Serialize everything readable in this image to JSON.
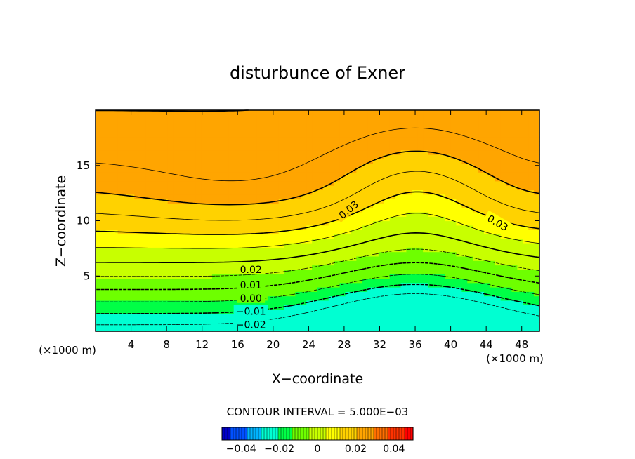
{
  "chart_data": {
    "type": "contour",
    "title": "disturbunce of Exner",
    "xlabel": "X−coordinate",
    "ylabel": "Z−coordinate",
    "x_unit": "(×1000 m)",
    "y_unit": "(×1000 m)",
    "xlim": [
      0,
      50
    ],
    "ylim": [
      0,
      20
    ],
    "x_ticks": [
      4,
      8,
      12,
      16,
      20,
      24,
      28,
      32,
      36,
      40,
      44,
      48
    ],
    "y_ticks": [
      5,
      10,
      15
    ],
    "contour_interval_text": "CONTOUR INTERVAL = 5.000E−03",
    "contour_levels": [
      -0.025,
      -0.02,
      -0.015,
      -0.01,
      -0.005,
      0.0,
      0.005,
      0.01,
      0.015,
      0.02,
      0.025,
      0.03,
      0.035,
      0.04
    ],
    "contour_labels": [
      {
        "text": "0.03",
        "x": 28.5,
        "z": 11.0,
        "rotate": -40
      },
      {
        "text": "0.03",
        "x": 45.3,
        "z": 9.8,
        "rotate": 30
      },
      {
        "text": "0.02",
        "x": 17.5,
        "z": 5.6,
        "rotate": 0
      },
      {
        "text": "0.01",
        "x": 17.5,
        "z": 4.2,
        "rotate": 0
      },
      {
        "text": "0.00",
        "x": 17.5,
        "z": 3.0,
        "rotate": 0
      },
      {
        "text": "−0.01",
        "x": 17.5,
        "z": 1.8,
        "rotate": 0
      },
      {
        "text": "−0.02",
        "x": 17.5,
        "z": 0.6,
        "rotate": 0
      }
    ],
    "colorbar": {
      "min": -0.05,
      "max": 0.05,
      "ticks": [
        {
          "value": -0.04,
          "label": "−0.04"
        },
        {
          "value": -0.02,
          "label": "−0.02"
        },
        {
          "value": 0,
          "label": "0"
        },
        {
          "value": 0.02,
          "label": "0.02"
        },
        {
          "value": 0.04,
          "label": "0.04"
        }
      ]
    },
    "colors": [
      "#0000c8",
      "#0050ff",
      "#00b4ff",
      "#00ffd2",
      "#00ff46",
      "#6eff00",
      "#c8ff00",
      "#ffff00",
      "#ffd200",
      "#ffa500",
      "#ff6e00",
      "#ff3200",
      "#ff0000"
    ]
  }
}
